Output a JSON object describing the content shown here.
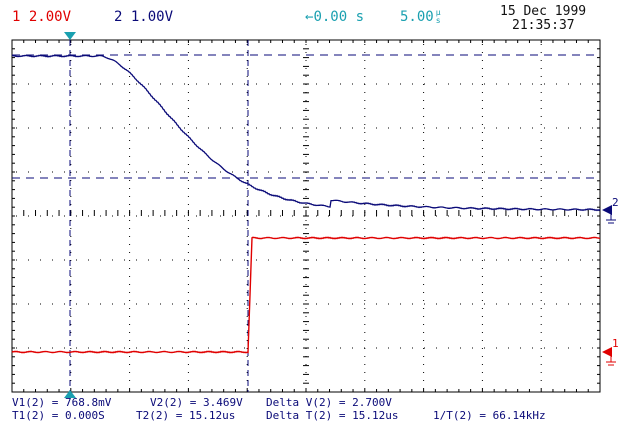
{
  "header": {
    "ch1_number": "1",
    "ch1_scale": "2.00V",
    "ch2_number": "2",
    "ch2_scale": "1.00V",
    "delay_arrow": "←",
    "delay": "0.00 s",
    "timebase_value": "5.00",
    "timebase_unit_top": "µ",
    "timebase_unit_bottom": "s",
    "date": "15 Dec 1999",
    "time": "21:35:37"
  },
  "markers": {
    "ch2_label": "2",
    "ch1_label": "1"
  },
  "measurements": {
    "v1": "V1(2) = 768.8mV",
    "v2": "V2(2) = 3.469V",
    "delta_v": "Delta V(2) = 2.700V",
    "t1": "T1(2) = 0.000S",
    "t2": "T2(2) = 15.12us",
    "delta_t": "Delta T(2) = 15.12us",
    "inv_t": "1/T(2) = 66.14kHz"
  },
  "colors": {
    "ch1": "#e00000",
    "ch2": "#0a0a78",
    "cursor": "#1aa0b0"
  }
}
